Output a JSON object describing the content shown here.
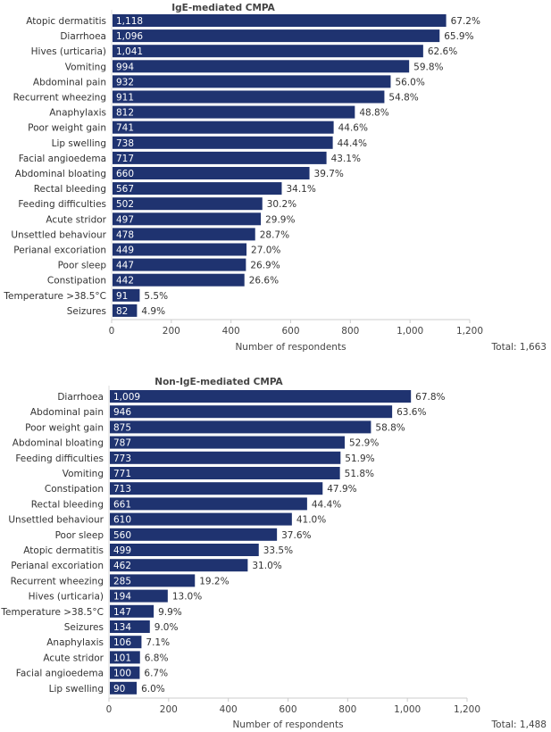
{
  "chart_data": [
    {
      "type": "bar",
      "orientation": "horizontal",
      "title": "IgE-mediated CMPA",
      "xlabel": "Number of respondents",
      "total_label": "Total: 1,663",
      "xlim": [
        0,
        1200
      ],
      "xticks": [
        "0",
        "200",
        "400",
        "600",
        "800",
        "1,000",
        "1,200"
      ],
      "bar_color": "#1f3370",
      "categories": [
        "Atopic dermatitis",
        "Diarrhoea",
        "Hives (urticaria)",
        "Vomiting",
        "Abdominal pain",
        "Recurrent wheezing",
        "Anaphylaxis",
        "Poor weight gain",
        "Lip swelling",
        "Facial angioedema",
        "Abdominal bloating",
        "Rectal bleeding",
        "Feeding difficulties",
        "Acute stridor",
        "Unsettled behaviour",
        "Perianal excoriation",
        "Poor sleep",
        "Constipation",
        "Temperature >38.5°C",
        "Seizures"
      ],
      "values": [
        1118,
        1096,
        1041,
        994,
        932,
        911,
        812,
        741,
        738,
        717,
        660,
        567,
        502,
        497,
        478,
        449,
        447,
        442,
        91,
        82
      ],
      "value_labels": [
        "1,118",
        "1,096",
        "1,041",
        "994",
        "932",
        "911",
        "812",
        "741",
        "738",
        "717",
        "660",
        "567",
        "502",
        "497",
        "478",
        "449",
        "447",
        "442",
        "91",
        "82"
      ],
      "percents": [
        "67.2%",
        "65.9%",
        "62.6%",
        "59.8%",
        "56.0%",
        "54.8%",
        "48.8%",
        "44.6%",
        "44.4%",
        "43.1%",
        "39.7%",
        "34.1%",
        "30.2%",
        "29.9%",
        "28.7%",
        "27.0%",
        "26.9%",
        "26.6%",
        "5.5%",
        "4.9%"
      ]
    },
    {
      "type": "bar",
      "orientation": "horizontal",
      "title": "Non-IgE-mediated CMPA",
      "xlabel": "Number of respondents",
      "total_label": "Total: 1,488",
      "xlim": [
        0,
        1200
      ],
      "xticks": [
        "0",
        "200",
        "400",
        "600",
        "800",
        "1,000",
        "1,200"
      ],
      "bar_color": "#1f3370",
      "categories": [
        "Diarrhoea",
        "Abdominal pain",
        "Poor weight gain",
        "Abdominal bloating",
        "Feeding difficulties",
        "Vomiting",
        "Constipation",
        "Rectal bleeding",
        "Unsettled behaviour",
        "Poor sleep",
        "Atopic dermatitis",
        "Perianal excoriation",
        "Recurrent wheezing",
        "Hives (urticaria)",
        "Temperature >38.5°C",
        "Seizures",
        "Anaphylaxis",
        "Acute stridor",
        "Facial angioedema",
        "Lip swelling"
      ],
      "values": [
        1009,
        946,
        875,
        787,
        773,
        771,
        713,
        661,
        610,
        560,
        499,
        462,
        285,
        194,
        147,
        134,
        106,
        101,
        100,
        90
      ],
      "value_labels": [
        "1,009",
        "946",
        "875",
        "787",
        "773",
        "771",
        "713",
        "661",
        "610",
        "560",
        "499",
        "462",
        "285",
        "194",
        "147",
        "134",
        "106",
        "101",
        "100",
        "90"
      ],
      "percents": [
        "67.8%",
        "63.6%",
        "58.8%",
        "52.9%",
        "51.9%",
        "51.8%",
        "47.9%",
        "44.4%",
        "41.0%",
        "37.6%",
        "33.5%",
        "31.0%",
        "19.2%",
        "13.0%",
        "9.9%",
        "9.0%",
        "7.1%",
        "6.8%",
        "6.7%",
        "6.0%"
      ]
    }
  ]
}
